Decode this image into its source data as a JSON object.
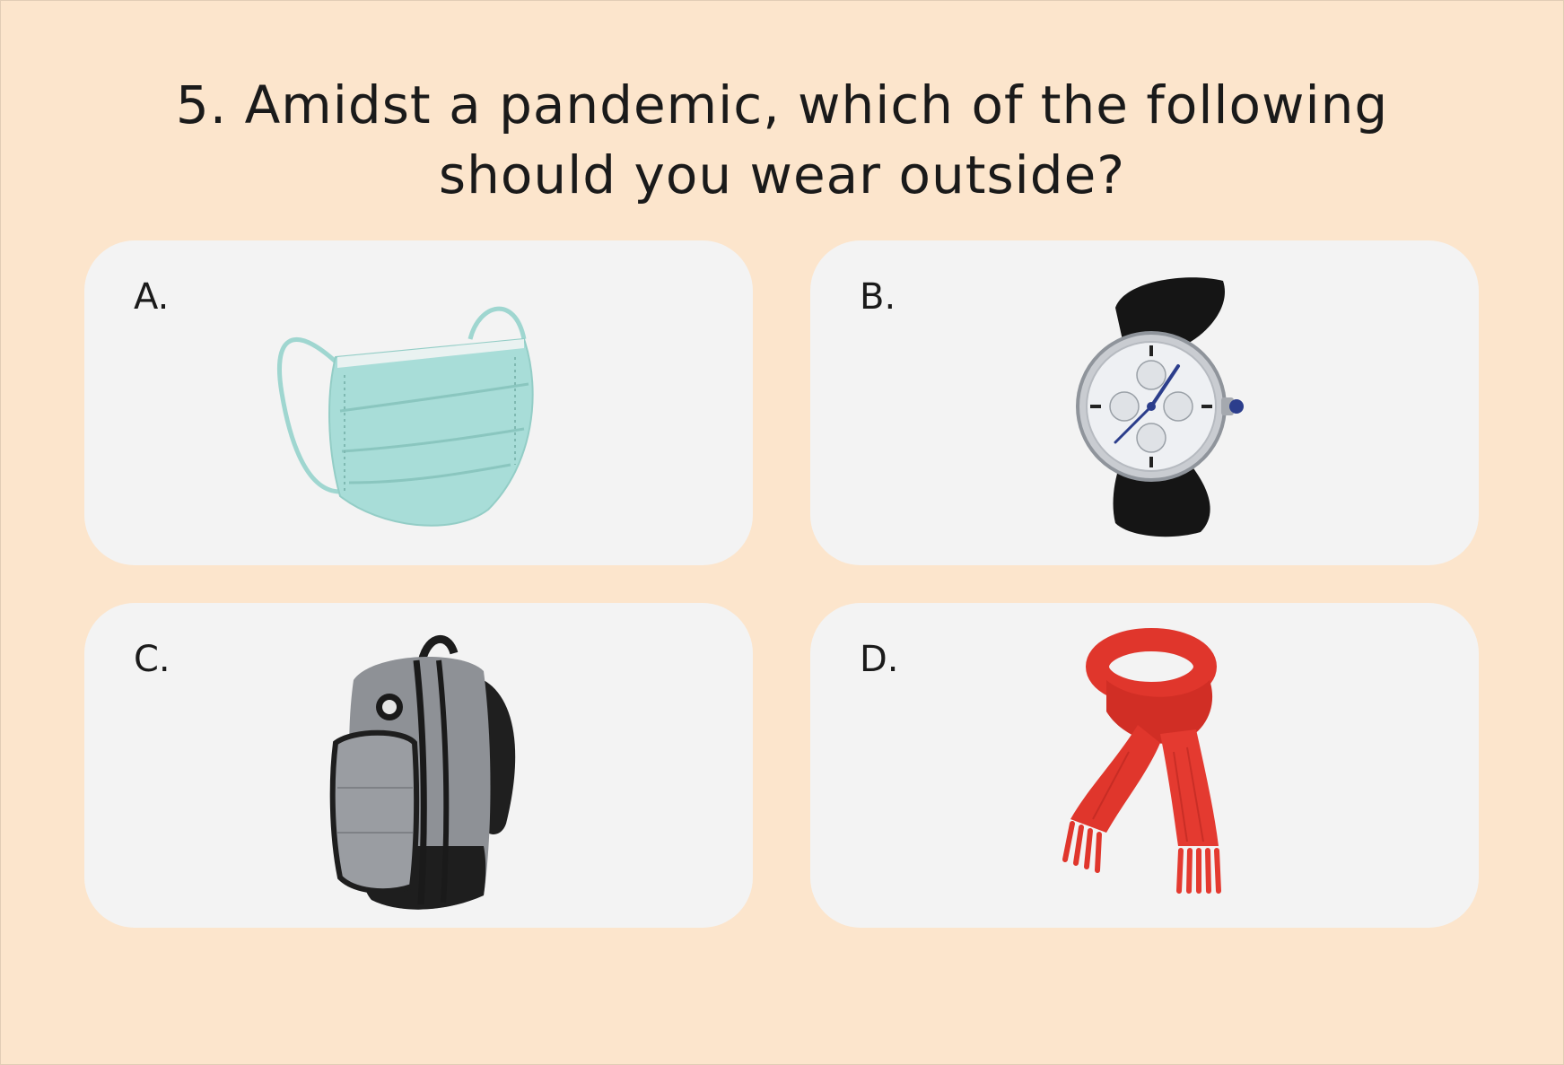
{
  "question": {
    "line1": "5. Amidst a pandemic, which of the following",
    "line2": "should you wear outside?"
  },
  "options": [
    {
      "letter": "A.",
      "icon": "face-mask-icon"
    },
    {
      "letter": "B.",
      "icon": "wristwatch-icon"
    },
    {
      "letter": "C.",
      "icon": "backpack-icon"
    },
    {
      "letter": "D.",
      "icon": "scarf-icon"
    }
  ],
  "colors": {
    "background": "#FCE5CC",
    "card": "#F3F3F3",
    "mask": "#A8DDD8",
    "scarf": "#E0362C",
    "backpack": "#8E9196"
  }
}
